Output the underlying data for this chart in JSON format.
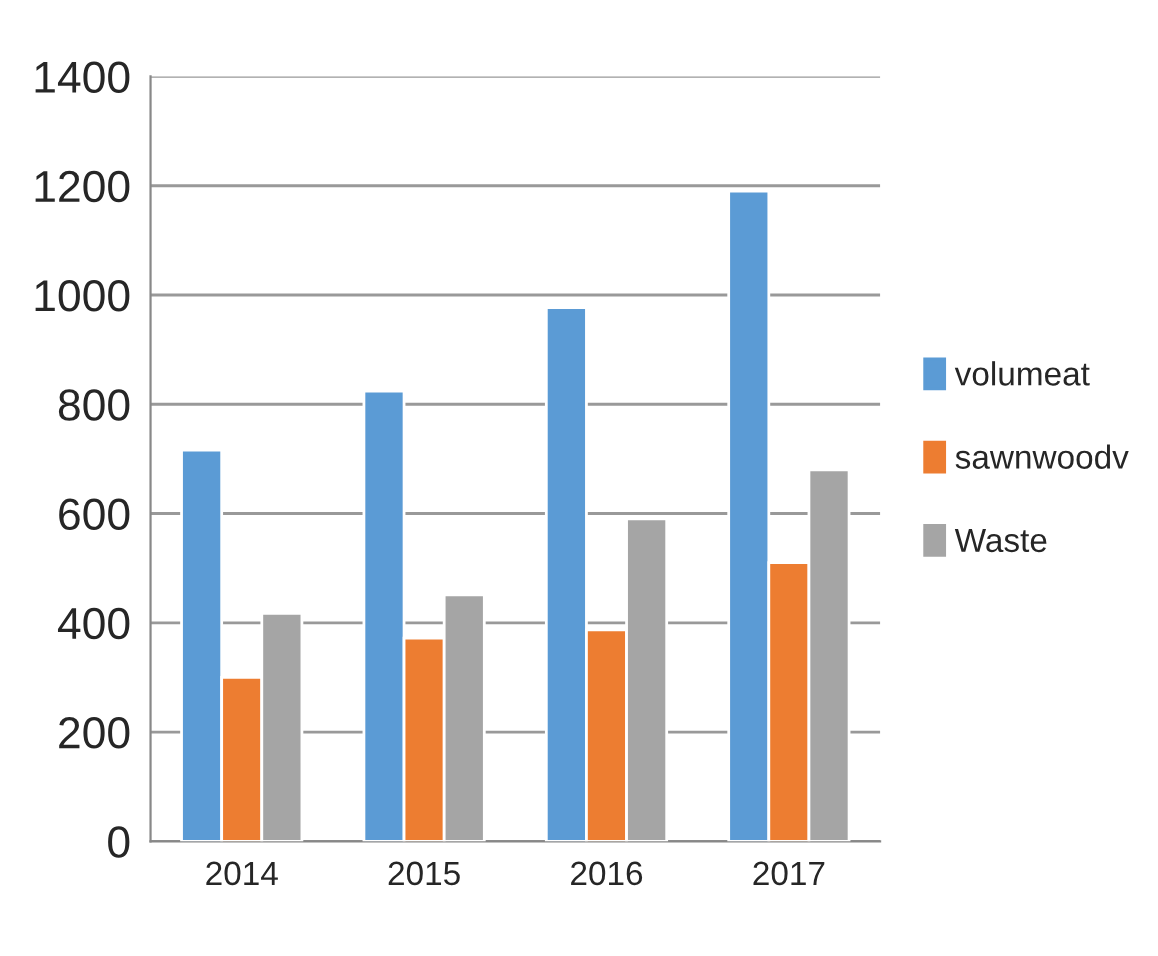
{
  "chart_data": {
    "type": "bar",
    "categories": [
      "2014",
      "2015",
      "2016",
      "2017"
    ],
    "series": [
      {
        "name": "volumeat",
        "color": "#5b9bd5",
        "values": [
          716,
          824,
          977,
          1190
        ]
      },
      {
        "name": "sawnwoodv",
        "color": "#ed7d31",
        "values": [
          300,
          372,
          387,
          510
        ]
      },
      {
        "name": "Waste",
        "color": "#a5a5a5",
        "values": [
          417,
          451,
          590,
          680
        ]
      }
    ],
    "ylim": [
      0,
      1400
    ],
    "yticks": [
      0,
      200,
      400,
      600,
      800,
      1000,
      1200,
      1400
    ],
    "grid": "y",
    "legend": "right"
  }
}
